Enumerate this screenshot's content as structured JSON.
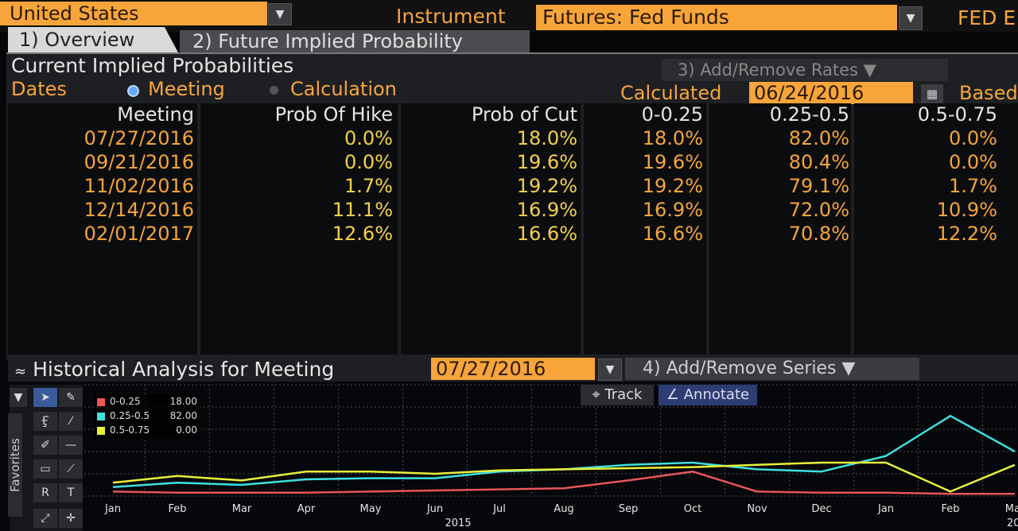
{
  "header": {
    "country": "United States",
    "instrument_label": "Instrument",
    "instrument_value": "Futures: Fed Funds",
    "fed_label": "FED E",
    "dropdown_glyph": "▼"
  },
  "tabs": [
    {
      "label": "1) Overview"
    },
    {
      "label": "2) Future Implied Probability"
    }
  ],
  "panel": {
    "title": "Current Implied Probabilities",
    "add_remove_rates": "3) Add/Remove Rates ▼",
    "dates_label": "Dates",
    "radio_meeting": "Meeting",
    "radio_calculation": "Calculation",
    "calculated_label": "Calculated",
    "calculated_date": "06/24/2016",
    "based_label": "Based"
  },
  "table": {
    "headers": [
      "Meeting",
      "Prob Of Hike",
      "Prob of Cut",
      "0-0.25",
      "0.25-0.5",
      "0.5-0.75"
    ],
    "rows": [
      [
        "07/27/2016",
        "0.0%",
        "18.0%",
        "18.0%",
        "82.0%",
        "0.0%"
      ],
      [
        "09/21/2016",
        "0.0%",
        "19.6%",
        "19.6%",
        "80.4%",
        "0.0%"
      ],
      [
        "11/02/2016",
        "1.7%",
        "19.2%",
        "19.2%",
        "79.1%",
        "1.7%"
      ],
      [
        "12/14/2016",
        "11.1%",
        "16.9%",
        "16.9%",
        "72.0%",
        "10.9%"
      ],
      [
        "02/01/2017",
        "12.6%",
        "16.6%",
        "16.6%",
        "70.8%",
        "12.2%"
      ]
    ]
  },
  "historical": {
    "title": "Historical Analysis for Meeting",
    "meeting_date": "07/27/2016",
    "add_remove_series": "4) Add/Remove Series ▼",
    "track_label": "Track",
    "annotate_label": "Annotate",
    "favorites_label": "Favorites"
  },
  "colors": {
    "amber": "#f7a53a",
    "series_0_025": "#e8555a",
    "series_025_05": "#3fe0e0",
    "series_05_075": "#e8f03a"
  },
  "chart_data": {
    "type": "line",
    "x": [
      "Jan",
      "Feb",
      "Mar",
      "Apr",
      "May",
      "Jun",
      "Jul",
      "Aug",
      "Sep",
      "Oct",
      "Nov",
      "Dec",
      "Jan",
      "Feb",
      "Mar"
    ],
    "x_tick_labels": [
      "Jan",
      "Feb",
      "Mar",
      "Apr",
      "May",
      "Jun",
      "Jul",
      "Aug",
      "Sep",
      "Oct",
      "Nov",
      "Dec",
      "Jan",
      "Feb",
      "Mar"
    ],
    "x_year_labels": [
      "2015",
      "20"
    ],
    "ylim": [
      0,
      100
    ],
    "grid": true,
    "legend_position": "top-left",
    "series": [
      {
        "name": "0-0.25",
        "legend_value": "18.00",
        "color": "#e8555a",
        "values": [
          4,
          3,
          3,
          3,
          4,
          5,
          6,
          7,
          14,
          22,
          4,
          3,
          3,
          2,
          2
        ]
      },
      {
        "name": "0.25-0.5",
        "legend_value": "82.00",
        "color": "#3fe0e0",
        "values": [
          8,
          12,
          10,
          15,
          16,
          16,
          22,
          24,
          28,
          30,
          24,
          22,
          36,
          72,
          40
        ]
      },
      {
        "name": "0.5-0.75",
        "legend_value": "0.00",
        "color": "#e8f03a",
        "values": [
          12,
          18,
          14,
          22,
          22,
          20,
          23,
          24,
          25,
          26,
          28,
          30,
          30,
          4,
          28
        ]
      }
    ]
  }
}
